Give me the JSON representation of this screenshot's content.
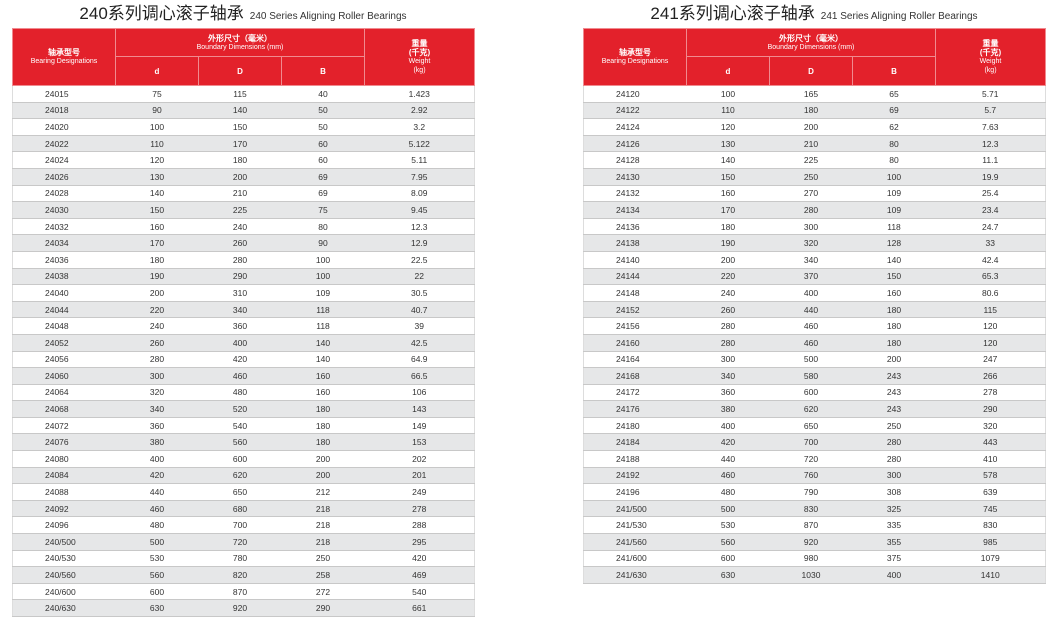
{
  "tables": [
    {
      "title_cn": "240系列调心滚子轴承",
      "title_en": "240 Series Aligning Roller Bearings",
      "header": {
        "designation_cn": "轴承型号",
        "designation_en": "Bearing Designations",
        "dims_cn": "外形尺寸（毫米）",
        "dims_en": "Boundary Dimensions (mm)",
        "weight_cn1": "重量",
        "weight_cn2": "(千克)",
        "weight_en": "Weight",
        "weight_unit": "(kg)",
        "d": "d",
        "D": "D",
        "B": "B"
      },
      "rows": [
        [
          "24015",
          "75",
          "115",
          "40",
          "1.423"
        ],
        [
          "24018",
          "90",
          "140",
          "50",
          "2.92"
        ],
        [
          "24020",
          "100",
          "150",
          "50",
          "3.2"
        ],
        [
          "24022",
          "110",
          "170",
          "60",
          "5.122"
        ],
        [
          "24024",
          "120",
          "180",
          "60",
          "5.11"
        ],
        [
          "24026",
          "130",
          "200",
          "69",
          "7.95"
        ],
        [
          "24028",
          "140",
          "210",
          "69",
          "8.09"
        ],
        [
          "24030",
          "150",
          "225",
          "75",
          "9.45"
        ],
        [
          "24032",
          "160",
          "240",
          "80",
          "12.3"
        ],
        [
          "24034",
          "170",
          "260",
          "90",
          "12.9"
        ],
        [
          "24036",
          "180",
          "280",
          "100",
          "22.5"
        ],
        [
          "24038",
          "190",
          "290",
          "100",
          "22"
        ],
        [
          "24040",
          "200",
          "310",
          "109",
          "30.5"
        ],
        [
          "24044",
          "220",
          "340",
          "118",
          "40.7"
        ],
        [
          "24048",
          "240",
          "360",
          "118",
          "39"
        ],
        [
          "24052",
          "260",
          "400",
          "140",
          "42.5"
        ],
        [
          "24056",
          "280",
          "420",
          "140",
          "64.9"
        ],
        [
          "24060",
          "300",
          "460",
          "160",
          "66.5"
        ],
        [
          "24064",
          "320",
          "480",
          "160",
          "106"
        ],
        [
          "24068",
          "340",
          "520",
          "180",
          "143"
        ],
        [
          "24072",
          "360",
          "540",
          "180",
          "149"
        ],
        [
          "24076",
          "380",
          "560",
          "180",
          "153"
        ],
        [
          "24080",
          "400",
          "600",
          "200",
          "202"
        ],
        [
          "24084",
          "420",
          "620",
          "200",
          "201"
        ],
        [
          "24088",
          "440",
          "650",
          "212",
          "249"
        ],
        [
          "24092",
          "460",
          "680",
          "218",
          "278"
        ],
        [
          "24096",
          "480",
          "700",
          "218",
          "288"
        ],
        [
          "240/500",
          "500",
          "720",
          "218",
          "295"
        ],
        [
          "240/530",
          "530",
          "780",
          "250",
          "420"
        ],
        [
          "240/560",
          "560",
          "820",
          "258",
          "469"
        ],
        [
          "240/600",
          "600",
          "870",
          "272",
          "540"
        ],
        [
          "240/630",
          "630",
          "920",
          "290",
          "661"
        ]
      ]
    },
    {
      "title_cn": "241系列调心滚子轴承",
      "title_en": "241 Series Aligning Roller Bearings",
      "header": {
        "designation_cn": "轴承型号",
        "designation_en": "Bearing Designations",
        "dims_cn": "外形尺寸（毫米）",
        "dims_en": "Boundary Dimensions (mm)",
        "weight_cn1": "重量",
        "weight_cn2": "(千克)",
        "weight_en": "Weight",
        "weight_unit": "(kg)",
        "d": "d",
        "D": "D",
        "B": "B"
      },
      "rows": [
        [
          "24120",
          "100",
          "165",
          "65",
          "5.71"
        ],
        [
          "24122",
          "110",
          "180",
          "69",
          "5.7"
        ],
        [
          "24124",
          "120",
          "200",
          "62",
          "7.63"
        ],
        [
          "24126",
          "130",
          "210",
          "80",
          "12.3"
        ],
        [
          "24128",
          "140",
          "225",
          "80",
          "11.1"
        ],
        [
          "24130",
          "150",
          "250",
          "100",
          "19.9"
        ],
        [
          "24132",
          "160",
          "270",
          "109",
          "25.4"
        ],
        [
          "24134",
          "170",
          "280",
          "109",
          "23.4"
        ],
        [
          "24136",
          "180",
          "300",
          "118",
          "24.7"
        ],
        [
          "24138",
          "190",
          "320",
          "128",
          "33"
        ],
        [
          "24140",
          "200",
          "340",
          "140",
          "42.4"
        ],
        [
          "24144",
          "220",
          "370",
          "150",
          "65.3"
        ],
        [
          "24148",
          "240",
          "400",
          "160",
          "80.6"
        ],
        [
          "24152",
          "260",
          "440",
          "180",
          "115"
        ],
        [
          "24156",
          "280",
          "460",
          "180",
          "120"
        ],
        [
          "24160",
          "280",
          "460",
          "180",
          "120"
        ],
        [
          "24164",
          "300",
          "500",
          "200",
          "247"
        ],
        [
          "24168",
          "340",
          "580",
          "243",
          "266"
        ],
        [
          "24172",
          "360",
          "600",
          "243",
          "278"
        ],
        [
          "24176",
          "380",
          "620",
          "243",
          "290"
        ],
        [
          "24180",
          "400",
          "650",
          "250",
          "320"
        ],
        [
          "24184",
          "420",
          "700",
          "280",
          "443"
        ],
        [
          "24188",
          "440",
          "720",
          "280",
          "410"
        ],
        [
          "24192",
          "460",
          "760",
          "300",
          "578"
        ],
        [
          "24196",
          "480",
          "790",
          "308",
          "639"
        ],
        [
          "241/500",
          "500",
          "830",
          "325",
          "745"
        ],
        [
          "241/530",
          "530",
          "870",
          "335",
          "830"
        ],
        [
          "241/560",
          "560",
          "920",
          "355",
          "985"
        ],
        [
          "241/600",
          "600",
          "980",
          "375",
          "1079"
        ],
        [
          "241/630",
          "630",
          "1030",
          "400",
          "1410"
        ]
      ]
    }
  ]
}
